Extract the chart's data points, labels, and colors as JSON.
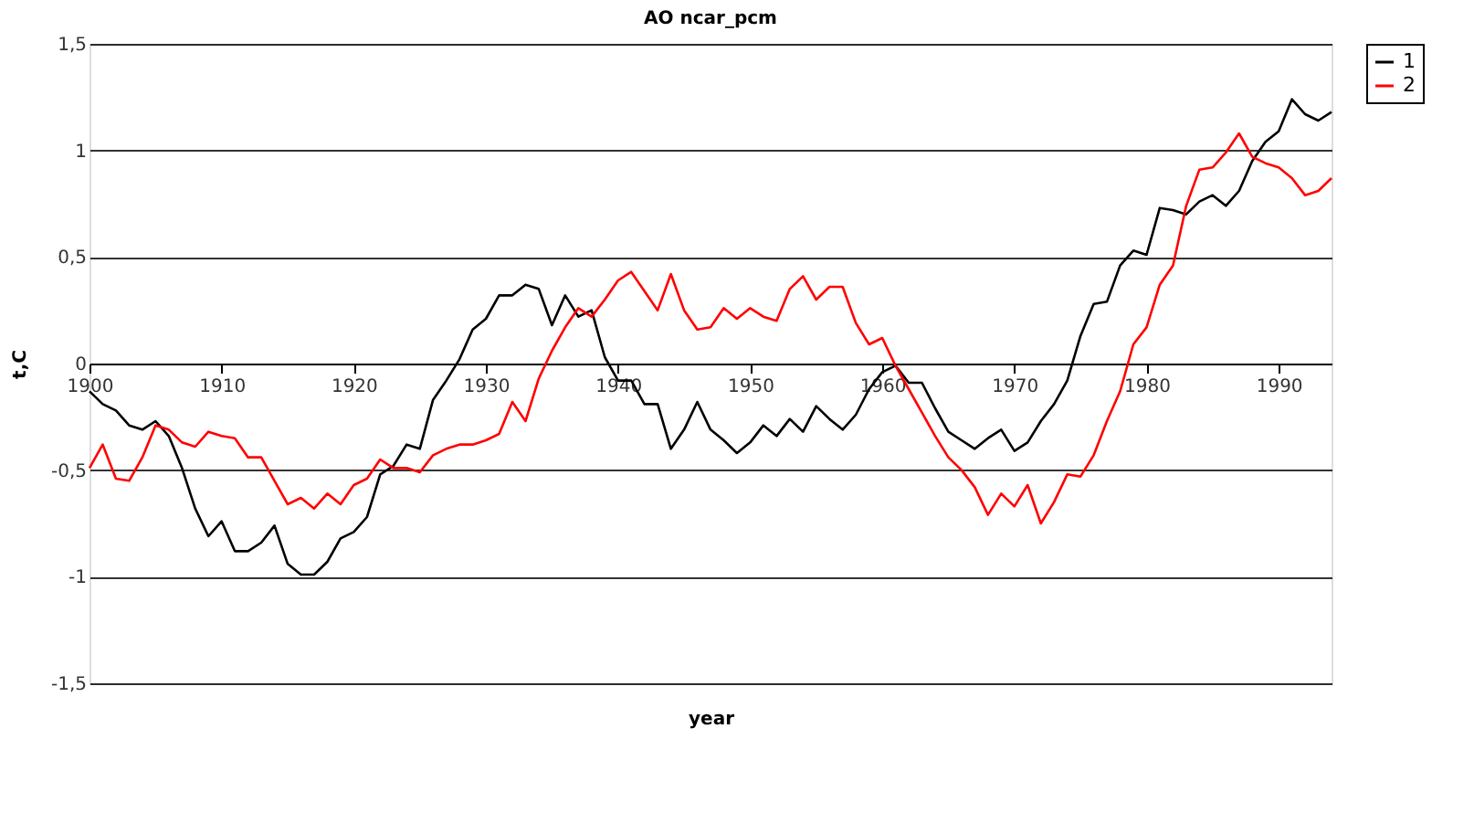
{
  "chart_data": {
    "type": "line",
    "title": "AO ncar_pcm",
    "xlabel": "year",
    "ylabel": "t,C",
    "x": [
      1900,
      1901,
      1902,
      1903,
      1904,
      1905,
      1906,
      1907,
      1908,
      1909,
      1910,
      1911,
      1912,
      1913,
      1914,
      1915,
      1916,
      1917,
      1918,
      1919,
      1920,
      1921,
      1922,
      1923,
      1924,
      1925,
      1926,
      1927,
      1928,
      1929,
      1930,
      1931,
      1932,
      1933,
      1934,
      1935,
      1936,
      1937,
      1938,
      1939,
      1940,
      1941,
      1942,
      1943,
      1944,
      1945,
      1946,
      1947,
      1948,
      1949,
      1950,
      1951,
      1952,
      1953,
      1954,
      1955,
      1956,
      1957,
      1958,
      1959,
      1960,
      1961,
      1962,
      1963,
      1964,
      1965,
      1966,
      1967,
      1968,
      1969,
      1970,
      1971,
      1972,
      1973,
      1974,
      1975,
      1976,
      1977,
      1978,
      1979,
      1980,
      1981,
      1982,
      1983,
      1984,
      1985,
      1986,
      1987,
      1988,
      1989,
      1990,
      1991,
      1992,
      1993,
      1994
    ],
    "series": [
      {
        "name": "1",
        "color": "#000000",
        "values": [
          -0.13,
          -0.19,
          -0.22,
          -0.29,
          -0.31,
          -0.27,
          -0.34,
          -0.49,
          -0.68,
          -0.81,
          -0.74,
          -0.88,
          -0.88,
          -0.84,
          -0.76,
          -0.94,
          -0.99,
          -0.99,
          -0.93,
          -0.82,
          -0.79,
          -0.72,
          -0.52,
          -0.48,
          -0.38,
          -0.4,
          -0.17,
          -0.08,
          0.02,
          0.16,
          0.21,
          0.32,
          0.32,
          0.37,
          0.35,
          0.18,
          0.32,
          0.22,
          0.25,
          0.03,
          -0.08,
          -0.08,
          -0.19,
          -0.19,
          -0.4,
          -0.31,
          -0.18,
          -0.31,
          -0.36,
          -0.42,
          -0.37,
          -0.29,
          -0.34,
          -0.26,
          -0.32,
          -0.2,
          -0.26,
          -0.31,
          -0.24,
          -0.12,
          -0.04,
          -0.01,
          -0.09,
          -0.09,
          -0.21,
          -0.32,
          -0.36,
          -0.4,
          -0.35,
          -0.31,
          -0.41,
          -0.37,
          -0.27,
          -0.19,
          -0.08,
          0.13,
          0.28,
          0.29,
          0.46,
          0.53,
          0.51,
          0.73,
          0.72,
          0.7,
          0.76,
          0.79,
          0.74,
          0.81,
          0.95,
          1.04,
          1.09,
          1.24,
          1.17,
          1.14,
          1.18
        ]
      },
      {
        "name": "2",
        "color": "#ff0000",
        "values": [
          -0.49,
          -0.38,
          -0.54,
          -0.55,
          -0.44,
          -0.29,
          -0.31,
          -0.37,
          -0.39,
          -0.32,
          -0.34,
          -0.35,
          -0.44,
          -0.44,
          -0.55,
          -0.66,
          -0.63,
          -0.68,
          -0.61,
          -0.66,
          -0.57,
          -0.54,
          -0.45,
          -0.49,
          -0.49,
          -0.51,
          -0.43,
          -0.4,
          -0.38,
          -0.38,
          -0.36,
          -0.33,
          -0.18,
          -0.27,
          -0.07,
          0.06,
          0.17,
          0.26,
          0.22,
          0.3,
          0.39,
          0.43,
          0.34,
          0.25,
          0.42,
          0.25,
          0.16,
          0.17,
          0.26,
          0.21,
          0.26,
          0.22,
          0.2,
          0.35,
          0.41,
          0.3,
          0.36,
          0.36,
          0.19,
          0.09,
          0.12,
          -0.01,
          -0.12,
          -0.23,
          -0.34,
          -0.44,
          -0.5,
          -0.58,
          -0.71,
          -0.61,
          -0.67,
          -0.57,
          -0.75,
          -0.65,
          -0.52,
          -0.53,
          -0.43,
          -0.27,
          -0.13,
          0.09,
          0.17,
          0.37,
          0.46,
          0.74,
          0.91,
          0.92,
          0.99,
          1.08,
          0.97,
          0.94,
          0.92,
          0.87,
          0.79,
          0.81,
          0.87
        ]
      }
    ],
    "xlim": [
      1900,
      1994
    ],
    "xticks": [
      1900,
      1910,
      1920,
      1930,
      1940,
      1950,
      1960,
      1970,
      1980,
      1990
    ],
    "ylim": [
      -1.5,
      1.5
    ],
    "yticks": [
      {
        "value": -1.5,
        "label": "-1,5"
      },
      {
        "value": -1,
        "label": "-1"
      },
      {
        "value": -0.5,
        "label": "-0,5"
      },
      0,
      {
        "value": 0.5,
        "label": "0,5"
      },
      1,
      {
        "value": 1.5,
        "label": "1,5"
      }
    ],
    "grid": "y",
    "legend": "right",
    "marker": "none",
    "line_style": "solid"
  }
}
